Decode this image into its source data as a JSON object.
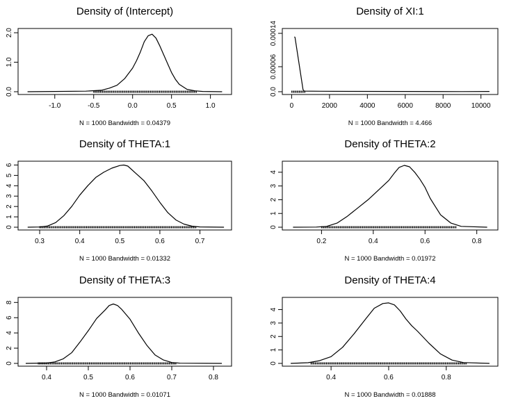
{
  "chart_data": [
    {
      "type": "line",
      "title": "Density of (Intercept)",
      "subtitle": "N = 1000   Bandwidth = 0.04379",
      "xlim": [
        -1.4,
        1.2
      ],
      "ylim": [
        0,
        2.05
      ],
      "xticks": [
        -1.0,
        -0.5,
        0.0,
        0.5,
        1.0
      ],
      "xtick_labels": [
        "-1.0",
        "-0.5",
        "0.0",
        "0.5",
        "1.0"
      ],
      "yticks": [
        0.0,
        1.0,
        2.0
      ],
      "ytick_labels": [
        "0.0",
        "1.0",
        "2.0"
      ],
      "series": [
        {
          "x": [
            -1.35,
            -1.0,
            -0.6,
            -0.4,
            -0.3,
            -0.2,
            -0.1,
            0.0,
            0.05,
            0.1,
            0.15,
            0.2,
            0.25,
            0.3,
            0.35,
            0.4,
            0.45,
            0.5,
            0.55,
            0.6,
            0.7,
            0.8,
            0.9,
            1.15
          ],
          "y": [
            0.0,
            0.01,
            0.02,
            0.05,
            0.12,
            0.22,
            0.45,
            0.8,
            1.05,
            1.35,
            1.7,
            1.9,
            1.95,
            1.82,
            1.55,
            1.25,
            0.95,
            0.65,
            0.42,
            0.25,
            0.08,
            0.03,
            0.01,
            0.0
          ]
        }
      ],
      "rug": [
        -0.5,
        0.82
      ]
    },
    {
      "type": "line",
      "title": "Density of XI:1",
      "subtitle": "N = 1000   Bandwidth = 4.466",
      "xlim": [
        -200,
        10600
      ],
      "ylim": [
        0,
        0.000145
      ],
      "xticks": [
        0,
        2000,
        4000,
        6000,
        8000,
        10000
      ],
      "xtick_labels": [
        "0",
        "2000",
        "4000",
        "6000",
        "8000",
        "10000"
      ],
      "yticks": [
        0.0,
        6e-05,
        0.00014
      ],
      "ytick_labels": [
        "0.0",
        "0.00006",
        "0.00014"
      ],
      "series": [
        {
          "x": [
            150,
            180,
            600,
            650,
            700,
            1500,
            3000,
            6000,
            9000,
            10450
          ],
          "y": [
            0.000132,
            0.00013,
            5e-06,
            2e-06,
            1.5e-06,
            1.2e-06,
            8e-07,
            6e-07,
            4e-07,
            6e-07
          ]
        }
      ],
      "rug": [
        0,
        700
      ]
    },
    {
      "type": "line",
      "title": "Density of THETA:1",
      "subtitle": "N = 1000   Bandwidth = 0.01332",
      "xlim": [
        0.26,
        0.765
      ],
      "ylim": [
        0,
        6.1
      ],
      "xticks": [
        0.3,
        0.4,
        0.5,
        0.6,
        0.7
      ],
      "xtick_labels": [
        "0.3",
        "0.4",
        "0.5",
        "0.6",
        "0.7"
      ],
      "yticks": [
        0,
        1,
        2,
        3,
        4,
        5,
        6
      ],
      "ytick_labels": [
        "0",
        "1",
        "2",
        "3",
        "4",
        "5",
        "6"
      ],
      "series": [
        {
          "x": [
            0.27,
            0.3,
            0.32,
            0.34,
            0.36,
            0.38,
            0.4,
            0.42,
            0.44,
            0.46,
            0.48,
            0.5,
            0.51,
            0.52,
            0.54,
            0.56,
            0.58,
            0.6,
            0.62,
            0.64,
            0.66,
            0.68,
            0.7,
            0.76
          ],
          "y": [
            0.0,
            0.02,
            0.12,
            0.45,
            1.1,
            2.0,
            3.1,
            4.0,
            4.8,
            5.3,
            5.7,
            5.95,
            6.0,
            5.9,
            5.2,
            4.5,
            3.5,
            2.4,
            1.4,
            0.7,
            0.3,
            0.1,
            0.03,
            0.0
          ]
        }
      ],
      "rug": [
        0.3,
        0.69
      ]
    },
    {
      "type": "line",
      "title": "Density of THETA:2",
      "subtitle": "N = 1000   Bandwidth = 0.01972",
      "xlim": [
        0.07,
        0.86
      ],
      "ylim": [
        0,
        4.6
      ],
      "xticks": [
        0.2,
        0.4,
        0.6,
        0.8
      ],
      "xtick_labels": [
        "0.2",
        "0.4",
        "0.6",
        "0.8"
      ],
      "yticks": [
        0,
        1,
        2,
        3,
        4
      ],
      "ytick_labels": [
        "0",
        "1",
        "2",
        "3",
        "4"
      ],
      "series": [
        {
          "x": [
            0.09,
            0.18,
            0.22,
            0.26,
            0.3,
            0.34,
            0.38,
            0.42,
            0.46,
            0.48,
            0.5,
            0.52,
            0.54,
            0.56,
            0.58,
            0.6,
            0.62,
            0.64,
            0.66,
            0.7,
            0.74,
            0.84
          ],
          "y": [
            0.0,
            0.01,
            0.06,
            0.3,
            0.8,
            1.4,
            2.0,
            2.7,
            3.4,
            3.9,
            4.35,
            4.5,
            4.4,
            4.0,
            3.5,
            2.9,
            2.1,
            1.5,
            0.9,
            0.3,
            0.06,
            0.0
          ]
        }
      ],
      "rug": [
        0.2,
        0.72
      ]
    },
    {
      "type": "line",
      "title": "Density of THETA:3",
      "subtitle": "N = 1000   Bandwidth = 0.01071",
      "xlim": [
        0.345,
        0.83
      ],
      "ylim": [
        0,
        8.3
      ],
      "xticks": [
        0.4,
        0.5,
        0.6,
        0.7,
        0.8
      ],
      "xtick_labels": [
        "0.4",
        "0.5",
        "0.6",
        "0.7",
        "0.8"
      ],
      "yticks": [
        0,
        2,
        4,
        6,
        8
      ],
      "ytick_labels": [
        "0",
        "2",
        "4",
        "6",
        "8"
      ],
      "series": [
        {
          "x": [
            0.35,
            0.4,
            0.42,
            0.44,
            0.46,
            0.48,
            0.5,
            0.52,
            0.54,
            0.55,
            0.56,
            0.57,
            0.58,
            0.6,
            0.62,
            0.64,
            0.66,
            0.68,
            0.7,
            0.72,
            0.82
          ],
          "y": [
            0.0,
            0.05,
            0.2,
            0.6,
            1.4,
            2.8,
            4.3,
            5.9,
            7.0,
            7.6,
            7.8,
            7.6,
            7.1,
            5.8,
            4.0,
            2.4,
            1.1,
            0.45,
            0.12,
            0.03,
            0.0
          ]
        }
      ],
      "rug": [
        0.38,
        0.71
      ]
    },
    {
      "type": "line",
      "title": "Density of THETA:4",
      "subtitle": "N = 1000   Bandwidth = 0.01888",
      "xlim": [
        0.25,
        0.96
      ],
      "ylim": [
        0,
        4.7
      ],
      "xticks": [
        0.4,
        0.6,
        0.8
      ],
      "xtick_labels": [
        "0.4",
        "0.6",
        "0.8"
      ],
      "yticks": [
        0,
        1,
        2,
        3,
        4
      ],
      "ytick_labels": [
        "0",
        "1",
        "2",
        "3",
        "4"
      ],
      "series": [
        {
          "x": [
            0.26,
            0.32,
            0.36,
            0.4,
            0.44,
            0.48,
            0.52,
            0.55,
            0.58,
            0.6,
            0.62,
            0.64,
            0.66,
            0.68,
            0.7,
            0.74,
            0.78,
            0.82,
            0.86,
            0.95
          ],
          "y": [
            0.0,
            0.05,
            0.2,
            0.5,
            1.2,
            2.2,
            3.3,
            4.1,
            4.45,
            4.5,
            4.35,
            3.9,
            3.3,
            2.8,
            2.4,
            1.5,
            0.7,
            0.25,
            0.06,
            0.0
          ]
        }
      ],
      "rug": [
        0.33,
        0.87
      ]
    }
  ]
}
